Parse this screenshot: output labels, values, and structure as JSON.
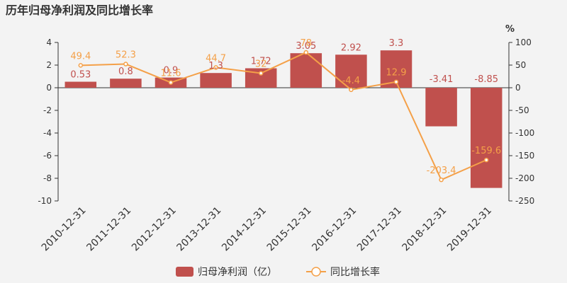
{
  "chart_data": {
    "type": "bar",
    "title": "历年归母净利润及同比增长率",
    "categories": [
      "2010-12-31",
      "2011-12-31",
      "2012-12-31",
      "2013-12-31",
      "2014-12-31",
      "2015-12-31",
      "2016-12-31",
      "2017-12-31",
      "2018-12-31",
      "2019-12-31"
    ],
    "series": [
      {
        "name": "归母净利润（亿）",
        "type": "bar",
        "axis": "left",
        "values": [
          0.53,
          0.8,
          0.9,
          1.3,
          1.72,
          3.05,
          2.92,
          3.3,
          -3.41,
          -8.85
        ],
        "labels": [
          "0.53",
          "0.8",
          "0.9",
          "1.3",
          "1.72",
          "3.05",
          "2.92",
          "3.3",
          "-3.41",
          "-8.85"
        ],
        "color": "#c0504d"
      },
      {
        "name": "同比增长率",
        "type": "line",
        "axis": "right",
        "values": [
          49.4,
          52.3,
          11.6,
          44.7,
          32,
          78,
          -4.4,
          12.9,
          -203.4,
          -159.6
        ],
        "labels": [
          "49.4",
          "52.3",
          "11.6",
          "44.7",
          "32",
          "78",
          "-4.4",
          "12.9",
          "-203.4",
          "-159.6"
        ],
        "color": "#f4a048"
      }
    ],
    "y_left": {
      "min": -10,
      "max": 4,
      "ticks": [
        4,
        2,
        0,
        -2,
        -4,
        -6,
        -8,
        -10
      ]
    },
    "y_right": {
      "min": -250,
      "max": 100,
      "ticks": [
        100,
        50,
        0,
        -50,
        -100,
        -150,
        -200,
        -250
      ],
      "unit_label": "%"
    },
    "grid": false,
    "legend_position": "bottom"
  }
}
